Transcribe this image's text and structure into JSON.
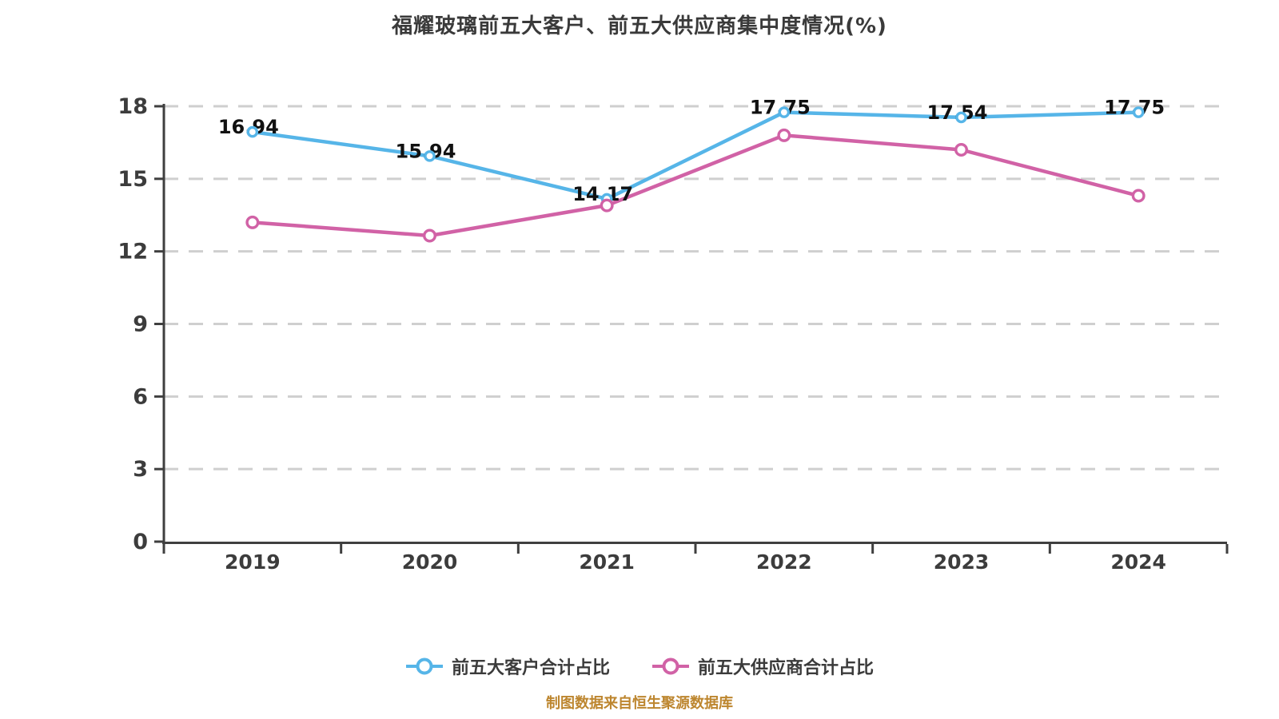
{
  "title": "福耀玻璃前五大客户、前五大供应商集中度情况(%)",
  "footer": "制图数据来自恒生聚源数据库",
  "colors": {
    "customers_line": "#56b5e8",
    "suppliers_line": "#d162a6",
    "axis": "#3f3f3f",
    "gridline": "#cfcfcf",
    "tick_label": "#3c3c3c",
    "data_label": "#111111",
    "title_text": "#3a3a3a",
    "footer_text": "#bd862f",
    "marker_fill": "#ffffff",
    "background": "#ffffff"
  },
  "legend": {
    "items": [
      {
        "label": "前五大客户合计占比",
        "color": "#56b5e8"
      },
      {
        "label": "前五大供应商合计占比",
        "color": "#d162a6"
      }
    ]
  },
  "chart_data": {
    "type": "line",
    "title": "福耀玻璃前五大客户、前五大供应商集中度情况(%)",
    "categories": [
      "2019",
      "2020",
      "2021",
      "2022",
      "2023",
      "2024"
    ],
    "series": [
      {
        "key": "customers",
        "name": "前五大客户合计占比",
        "values": [
          16.94,
          15.94,
          14.17,
          17.75,
          17.54,
          17.75
        ],
        "color": "#56b5e8",
        "labels_visible": true
      },
      {
        "key": "suppliers",
        "name": "前五大供应商合计占比",
        "values": [
          13.2,
          12.65,
          13.9,
          16.8,
          16.2,
          14.3
        ],
        "color": "#d162a6",
        "labels_visible": false
      }
    ],
    "xlabel": "",
    "ylabel": "",
    "ylim": [
      0,
      18
    ],
    "yticks": [
      0,
      3,
      6,
      9,
      12,
      15,
      18
    ],
    "grid": "dashed-horizontal",
    "legend_position": "bottom"
  }
}
